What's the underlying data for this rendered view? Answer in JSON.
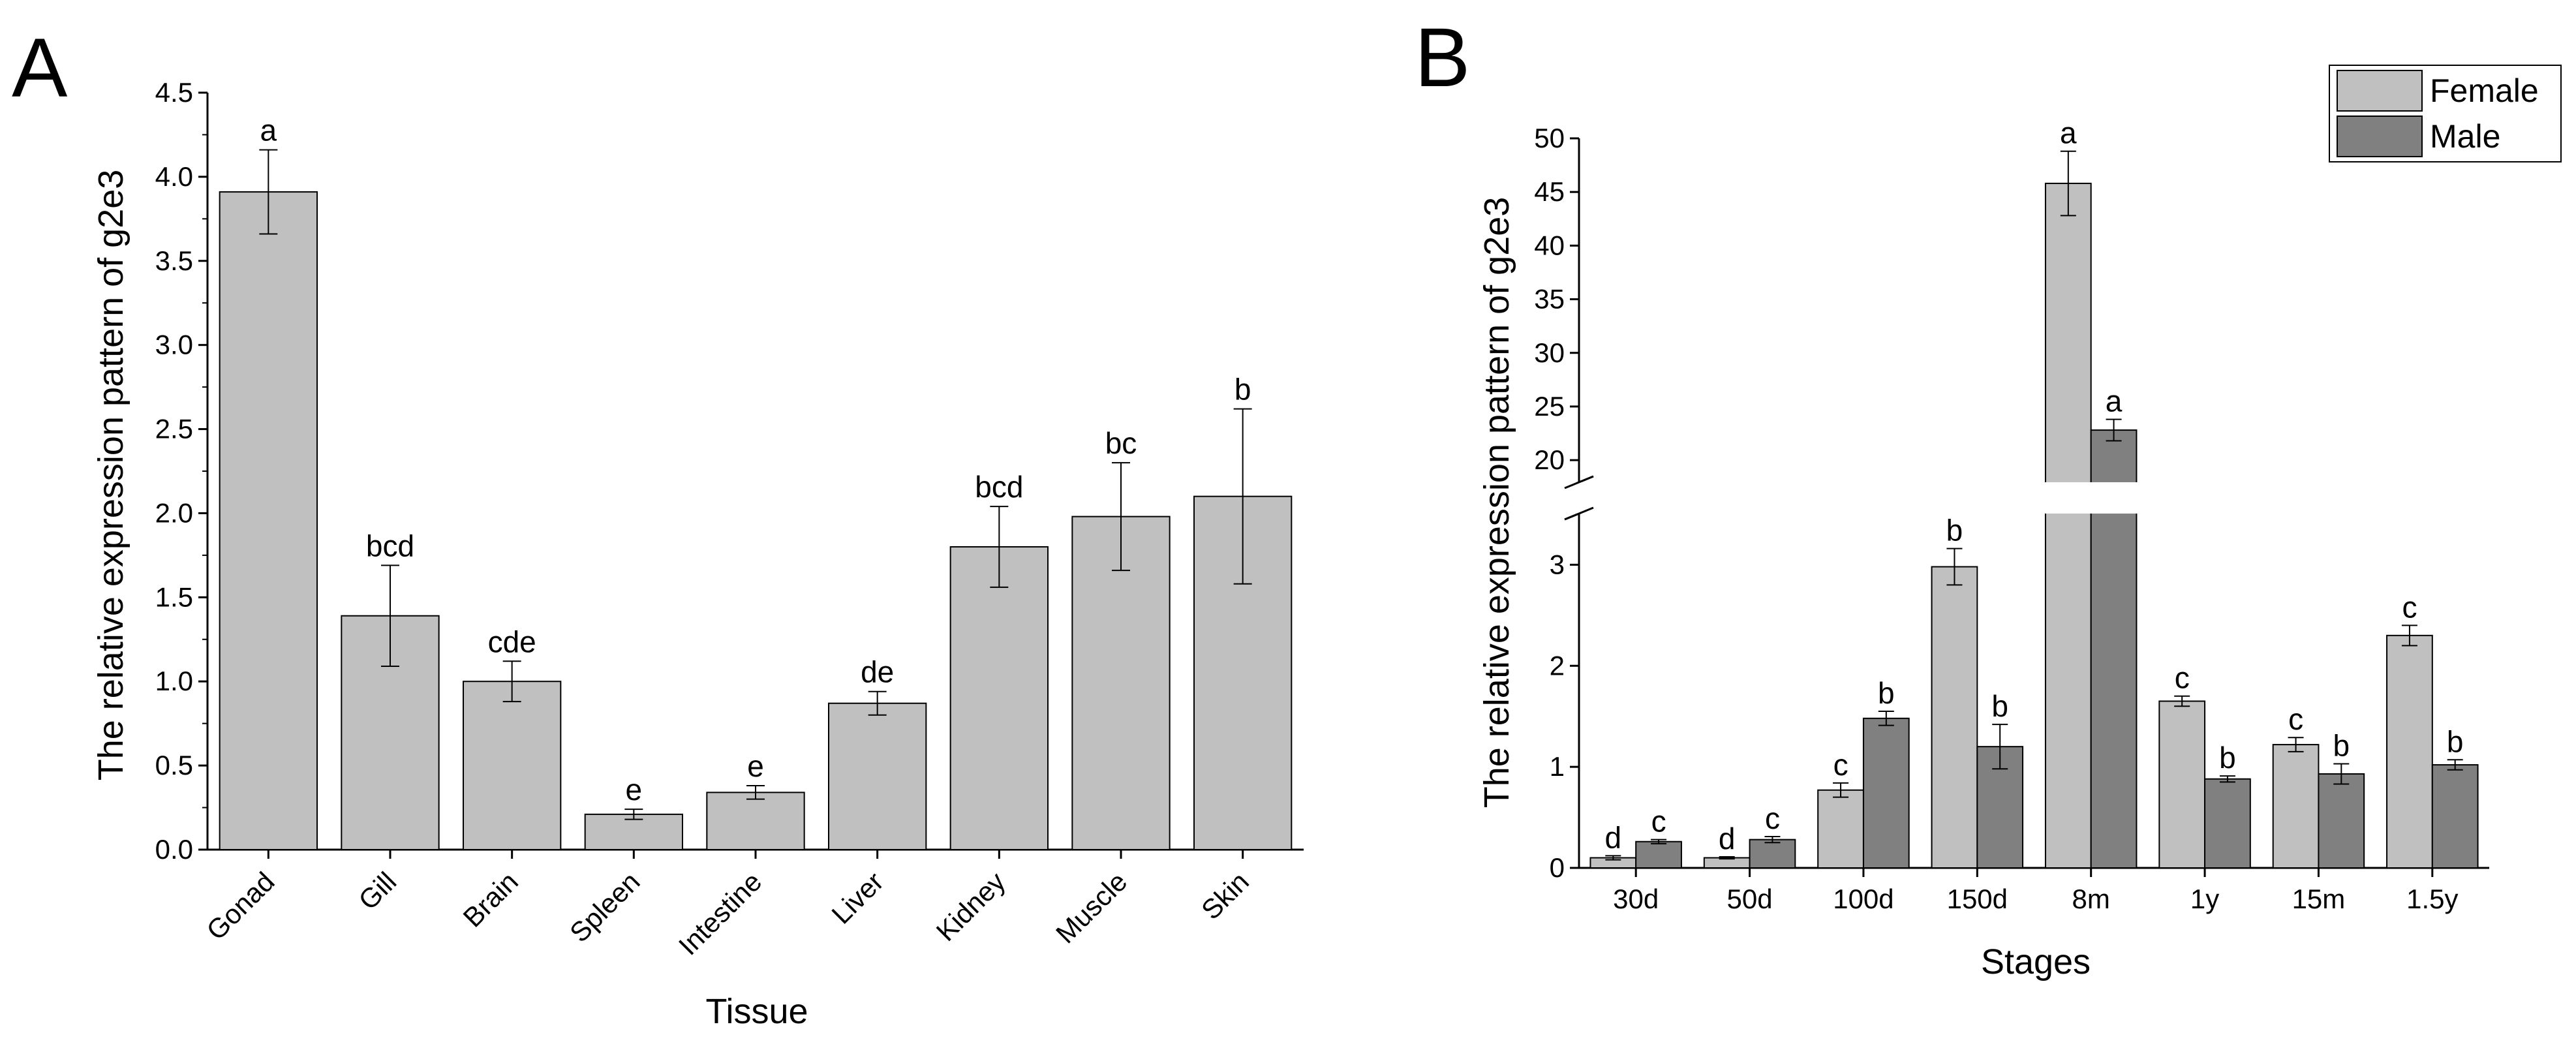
{
  "chart_data": [
    {
      "type": "bar",
      "panel": "A",
      "title": "",
      "xlabel": "Tissue",
      "ylabel": "The relative expression pattern of g2e3",
      "ylim": [
        0,
        4.5
      ],
      "yticks": [
        "0.0",
        "0.5",
        "1.0",
        "1.5",
        "2.0",
        "2.5",
        "3.0",
        "3.5",
        "4.0",
        "4.5"
      ],
      "categories": [
        "Gonad",
        "Gill",
        "Brain",
        "Spleen",
        "Intestine",
        "Liver",
        "Kidney",
        "Muscle",
        "Skin"
      ],
      "values": [
        3.91,
        1.39,
        1.0,
        0.21,
        0.34,
        0.87,
        1.8,
        1.98,
        2.1
      ],
      "errors": [
        0.25,
        0.3,
        0.12,
        0.03,
        0.04,
        0.07,
        0.24,
        0.32,
        0.52
      ],
      "significance": [
        "a",
        "bcd",
        "cde",
        "e",
        "e",
        "de",
        "bcd",
        "bc",
        "b"
      ],
      "color": "#c0c0c0",
      "grid": false
    },
    {
      "type": "bar",
      "panel": "B",
      "title": "",
      "xlabel": "Stages",
      "ylabel": "The relative expression pattern of g2e3",
      "broken_axis": {
        "lower_range": [
          0,
          3.5
        ],
        "upper_range": [
          18,
          50
        ],
        "lower_ticks": [
          "0",
          "1",
          "2",
          "3"
        ],
        "upper_ticks": [
          "20",
          "25",
          "30",
          "35",
          "40",
          "45",
          "50"
        ]
      },
      "categories": [
        "30d",
        "50d",
        "100d",
        "150d",
        "8m",
        "1y",
        "15m",
        "1.5y"
      ],
      "series": [
        {
          "name": "Female",
          "color": "#c0c0c0",
          "values": [
            0.1,
            0.1,
            0.77,
            2.98,
            45.8,
            1.65,
            1.22,
            2.3
          ],
          "errors": [
            0.02,
            0.01,
            0.07,
            0.18,
            3.0,
            0.05,
            0.07,
            0.1
          ],
          "significance": [
            "d",
            "d",
            "c",
            "b",
            "a",
            "c",
            "c",
            "c"
          ]
        },
        {
          "name": "Male",
          "color": "#808080",
          "values": [
            0.26,
            0.28,
            1.48,
            1.2,
            22.8,
            0.88,
            0.93,
            1.02
          ],
          "errors": [
            0.02,
            0.03,
            0.07,
            0.22,
            1.0,
            0.03,
            0.1,
            0.05
          ],
          "significance": [
            "c",
            "c",
            "b",
            "b",
            "a",
            "b",
            "b",
            "b"
          ]
        }
      ],
      "legend_position": "top-right",
      "grid": false
    }
  ]
}
